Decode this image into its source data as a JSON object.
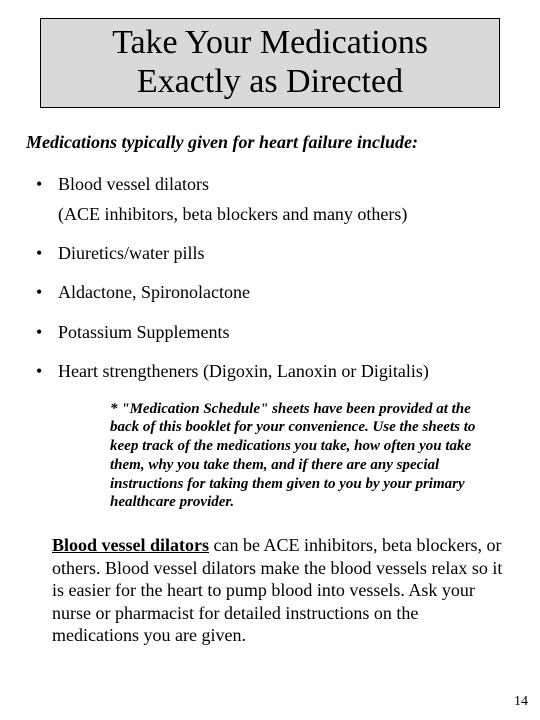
{
  "title": {
    "line1": "Take Your Medications",
    "line2": "Exactly as Directed",
    "background_color": "#d9d9d9",
    "border_color": "#000000",
    "fontsize": 34
  },
  "subhead": {
    "text": "Medications typically given for heart failure include:",
    "fontsize": 18
  },
  "bullets": [
    {
      "text": "Blood vessel dilators",
      "sub": "(ACE inhibitors, beta blockers and many others)"
    },
    {
      "text": "Diuretics/water pills"
    },
    {
      "text": "Aldactone, Spironolactone"
    },
    {
      "text": "Potassium Supplements"
    },
    {
      "text": "Heart strengtheners (Digoxin, Lanoxin or Digitalis)"
    }
  ],
  "note": {
    "text": "* \"Medication Schedule\" sheets have been provided at the back of this booklet for your convenience. Use the sheets to keep track of the medications you take, how often you take them, why you take them, and if there are any special instructions for taking them given to you by your primary healthcare provider.",
    "fontsize": 15
  },
  "paragraph": {
    "lead": "Blood vessel dilators",
    "rest": "  can be ACE inhibitors, beta blockers, or others. Blood vessel dilators make the blood vessels relax so it is easier for the heart to pump blood into vessels. Ask your nurse or pharmacist for detailed instructions on the medications you are given.",
    "fontsize": 18
  },
  "page_number": "14",
  "colors": {
    "page_bg": "#ffffff",
    "text": "#000000"
  }
}
